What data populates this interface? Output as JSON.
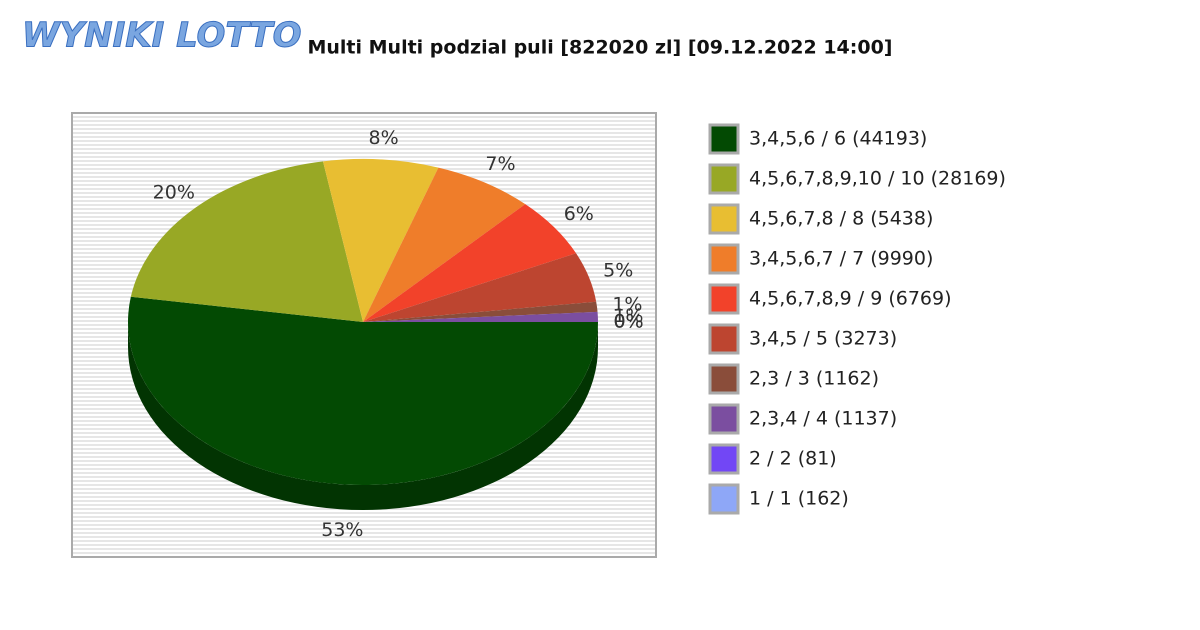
{
  "header": {
    "logo": "WYNIKI LOTTO"
  },
  "chart_data": {
    "type": "pie",
    "title": "Multi Multi podzial puli [822020 zl] [09.12.2022 14:00]",
    "categories": [
      "3,4,5,6 / 6 (44193)",
      "4,5,6,7,8,9,10 / 10 (28169)",
      "4,5,6,7,8 / 8 (5438)",
      "3,4,5,6,7 / 7 (9990)",
      "4,5,6,7,8,9 / 9 (6769)",
      "3,4,5 / 5 (3273)",
      "2,3 / 3 (1162)",
      "2,3,4 / 4 (1137)",
      "2 / 2 (81)",
      "1 / 1 (162)"
    ],
    "values": [
      53,
      20,
      8,
      7,
      6,
      5,
      1,
      1,
      0,
      0
    ],
    "value_labels": [
      "53%",
      "20%",
      "8%",
      "7%",
      "6%",
      "5%",
      "1%",
      "1%",
      "0%",
      "0%"
    ],
    "colors": [
      "#034a03",
      "#98a825",
      "#e8be32",
      "#ef7d2a",
      "#f2422a",
      "#bd4530",
      "#8a4d3a",
      "#7b4ea0",
      "#7247f5",
      "#8ea7f7"
    ],
    "legend": "right"
  }
}
